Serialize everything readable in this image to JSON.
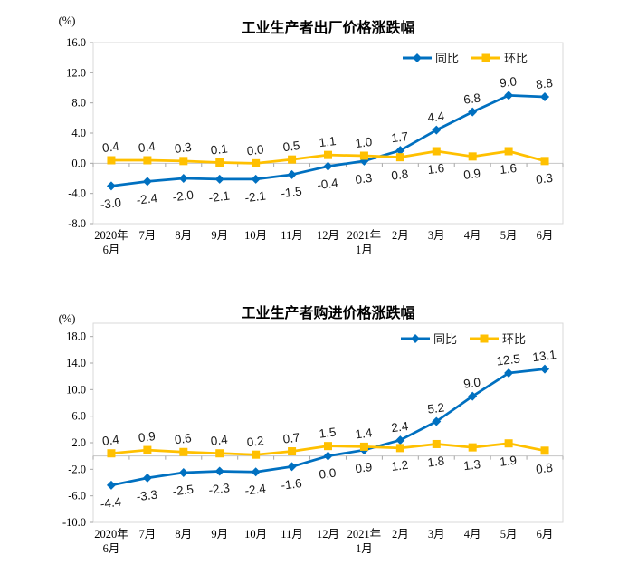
{
  "page": {
    "background": "#ffffff"
  },
  "chart_data": [
    {
      "type": "line",
      "title": "工业生产者出厂价格涨跌幅",
      "unit_label": "(%)",
      "categories": [
        [
          "2020年",
          "6月"
        ],
        [
          "7月"
        ],
        [
          "8月"
        ],
        [
          "9月"
        ],
        [
          "10月"
        ],
        [
          "11月"
        ],
        [
          "12月"
        ],
        [
          "2021年",
          "1月"
        ],
        [
          "2月"
        ],
        [
          "3月"
        ],
        [
          "4月"
        ],
        [
          "5月"
        ],
        [
          "6月"
        ]
      ],
      "ylim": [
        -8,
        16
      ],
      "y_ticks": [
        "16.0",
        "12.0",
        "8.0",
        "4.0",
        "0.0",
        "-4.0",
        "-8.0"
      ],
      "grid": false,
      "legend_position": "top-right-inside",
      "series": [
        {
          "name": "同比",
          "color": "#0070C0",
          "marker": "diamond",
          "values": [
            -3.0,
            -2.4,
            -2.0,
            -2.1,
            -2.1,
            -1.5,
            -0.4,
            0.3,
            1.7,
            4.4,
            6.8,
            9.0,
            8.8
          ],
          "label_sides": [
            "b",
            "b",
            "b",
            "b",
            "b",
            "b",
            "b",
            "b",
            "a",
            "a",
            "a",
            "a",
            "a"
          ]
        },
        {
          "name": "环比",
          "color": "#FFC000",
          "marker": "square",
          "values": [
            0.4,
            0.4,
            0.3,
            0.1,
            0.0,
            0.5,
            1.1,
            1.0,
            0.8,
            1.6,
            0.9,
            1.6,
            0.3
          ],
          "label_sides": [
            "a",
            "a",
            "a",
            "a",
            "a",
            "a",
            "a",
            "a",
            "b",
            "b",
            "b",
            "b",
            "b"
          ]
        }
      ]
    },
    {
      "type": "line",
      "title": "工业生产者购进价格涨跌幅",
      "unit_label": "(%)",
      "categories": [
        [
          "2020年",
          "6月"
        ],
        [
          "7月"
        ],
        [
          "8月"
        ],
        [
          "9月"
        ],
        [
          "10月"
        ],
        [
          "11月"
        ],
        [
          "12月"
        ],
        [
          "2021年",
          "1月"
        ],
        [
          "2月"
        ],
        [
          "3月"
        ],
        [
          "4月"
        ],
        [
          "5月"
        ],
        [
          "6月"
        ]
      ],
      "ylim": [
        -10,
        20
      ],
      "y_ticks": [
        "18.0",
        "14.0",
        "10.0",
        "6.0",
        "2.0",
        "-2.0",
        "-6.0",
        "-10.0"
      ],
      "grid": false,
      "legend_position": "top-right-inside",
      "series": [
        {
          "name": "同比",
          "color": "#0070C0",
          "marker": "diamond",
          "values": [
            -4.4,
            -3.3,
            -2.5,
            -2.3,
            -2.4,
            -1.6,
            0.0,
            0.9,
            2.4,
            5.2,
            9.0,
            12.5,
            13.1
          ],
          "label_sides": [
            "b",
            "b",
            "b",
            "b",
            "b",
            "b",
            "b",
            "b",
            "a",
            "a",
            "a",
            "a",
            "a"
          ]
        },
        {
          "name": "环比",
          "color": "#FFC000",
          "marker": "square",
          "values": [
            0.4,
            0.9,
            0.6,
            0.4,
            0.2,
            0.7,
            1.5,
            1.4,
            1.2,
            1.8,
            1.3,
            1.9,
            0.8
          ],
          "label_sides": [
            "a",
            "a",
            "a",
            "a",
            "a",
            "a",
            "a",
            "a",
            "b",
            "b",
            "b",
            "b",
            "b"
          ]
        }
      ]
    }
  ],
  "colors": {
    "frame": "#D9D9D9",
    "zero_line": "#C6C6C6",
    "tick": "#A6A6A6"
  }
}
